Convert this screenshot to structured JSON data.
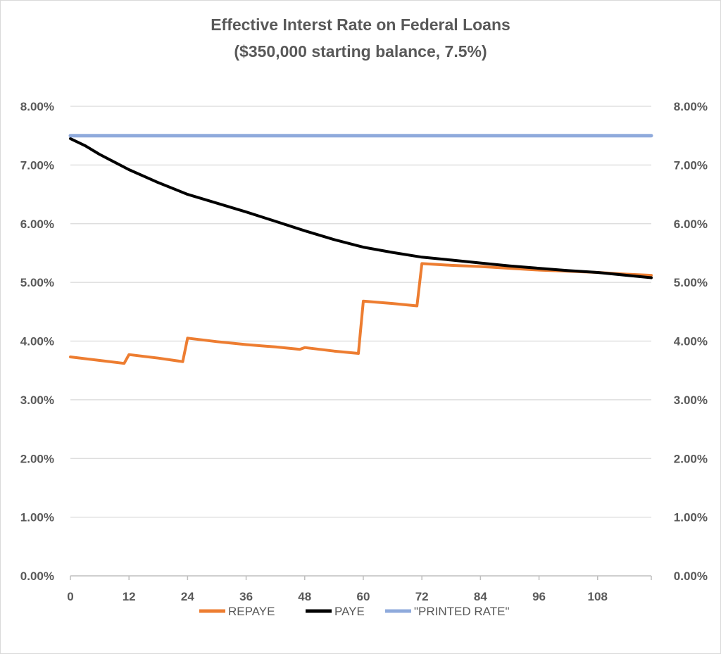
{
  "chart_data": {
    "type": "line",
    "title": "Effective Interst Rate on Federal Loans",
    "subtitle": "($350,000 starting balance, 7.5%)",
    "xlabel": "",
    "ylabel": "",
    "xlim": [
      0,
      119
    ],
    "ylim": [
      0,
      8
    ],
    "x_ticks": [
      0,
      12,
      24,
      36,
      48,
      60,
      72,
      84,
      96,
      108
    ],
    "x_tick_labels": [
      "0",
      "12",
      "24",
      "36",
      "48",
      "60",
      "72",
      "84",
      "96",
      "108"
    ],
    "y_ticks": [
      0,
      1,
      2,
      3,
      4,
      5,
      6,
      7,
      8
    ],
    "y_tick_labels_left": [
      "0.00%",
      "1.00%",
      "2.00%",
      "3.00%",
      "4.00%",
      "5.00%",
      "6.00%",
      "7.00%",
      "8.00%"
    ],
    "y_tick_labels_right": [
      "0.00%",
      "1.00%",
      "2.00%",
      "3.00%",
      "4.00%",
      "5.00%",
      "6.00%",
      "7.00%",
      "8.00%"
    ],
    "grid": true,
    "legend_position": "bottom",
    "series": [
      {
        "name": "REPAYE",
        "color": "#ed7d31",
        "points": [
          [
            0,
            3.73
          ],
          [
            6,
            3.67
          ],
          [
            11,
            3.62
          ],
          [
            12,
            3.77
          ],
          [
            18,
            3.71
          ],
          [
            23,
            3.65
          ],
          [
            24,
            4.05
          ],
          [
            30,
            3.99
          ],
          [
            36,
            3.94
          ],
          [
            42,
            3.9
          ],
          [
            47,
            3.86
          ],
          [
            48,
            3.89
          ],
          [
            54,
            3.83
          ],
          [
            59,
            3.79
          ],
          [
            60,
            4.68
          ],
          [
            66,
            4.64
          ],
          [
            71,
            4.6
          ],
          [
            72,
            5.32
          ],
          [
            78,
            5.29
          ],
          [
            84,
            5.27
          ],
          [
            90,
            5.24
          ],
          [
            96,
            5.21
          ],
          [
            102,
            5.19
          ],
          [
            108,
            5.17
          ],
          [
            114,
            5.14
          ],
          [
            119,
            5.12
          ]
        ]
      },
      {
        "name": "PAYE",
        "color": "#000000",
        "points": [
          [
            0,
            7.45
          ],
          [
            3,
            7.33
          ],
          [
            6,
            7.18
          ],
          [
            9,
            7.05
          ],
          [
            12,
            6.92
          ],
          [
            18,
            6.7
          ],
          [
            24,
            6.5
          ],
          [
            30,
            6.35
          ],
          [
            36,
            6.2
          ],
          [
            42,
            6.04
          ],
          [
            48,
            5.88
          ],
          [
            54,
            5.73
          ],
          [
            60,
            5.6
          ],
          [
            66,
            5.51
          ],
          [
            72,
            5.43
          ],
          [
            78,
            5.38
          ],
          [
            84,
            5.33
          ],
          [
            90,
            5.28
          ],
          [
            96,
            5.24
          ],
          [
            102,
            5.2
          ],
          [
            108,
            5.17
          ],
          [
            114,
            5.12
          ],
          [
            119,
            5.08
          ]
        ]
      },
      {
        "name": "\"PRINTED RATE\"",
        "color": "#8faadc",
        "points": [
          [
            0,
            7.5
          ],
          [
            119,
            7.5
          ]
        ]
      }
    ]
  }
}
